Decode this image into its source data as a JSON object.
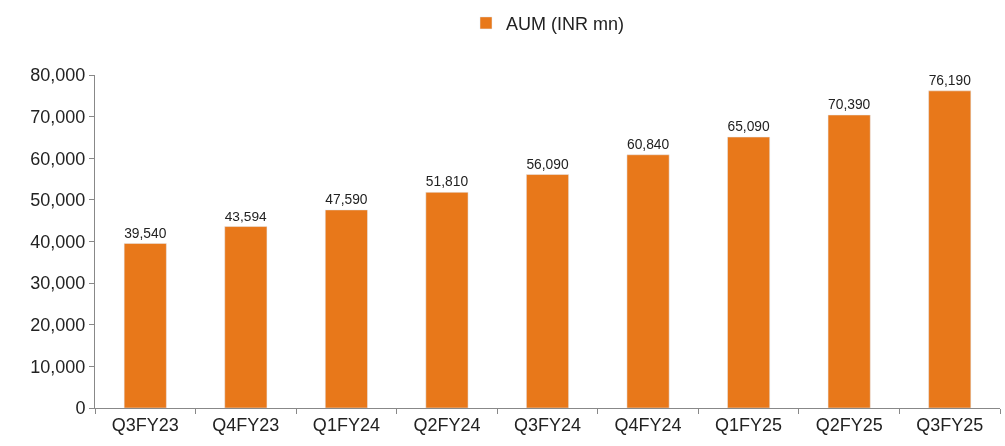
{
  "chart_data": {
    "type": "bar",
    "categories": [
      "Q3FY23",
      "Q4FY23",
      "Q1FY24",
      "Q2FY24",
      "Q3FY24",
      "Q4FY24",
      "Q1FY25",
      "Q2FY25",
      "Q3FY25"
    ],
    "series": [
      {
        "name": "AUM (INR mn)",
        "color": "#e8781a",
        "values": [
          39540,
          43594,
          47590,
          51810,
          56090,
          60840,
          65090,
          70390,
          76190
        ],
        "value_labels": [
          "39,540",
          "43,594",
          "47,590",
          "51,810",
          "56,090",
          "60,840",
          "65,090",
          "70,390",
          "76,190"
        ]
      }
    ],
    "ylim": [
      0,
      80000
    ],
    "yticks": [
      {
        "value": 0,
        "label": "0"
      },
      {
        "value": 10000,
        "label": "10,000"
      },
      {
        "value": 20000,
        "label": "20,000"
      },
      {
        "value": 30000,
        "label": "30,000"
      },
      {
        "value": 40000,
        "label": "40,000"
      },
      {
        "value": 50000,
        "label": "50,000"
      },
      {
        "value": 60000,
        "label": "60,000"
      },
      {
        "value": 70000,
        "label": "70,000"
      },
      {
        "value": 80000,
        "label": "80,000"
      }
    ],
    "legend": "top"
  }
}
